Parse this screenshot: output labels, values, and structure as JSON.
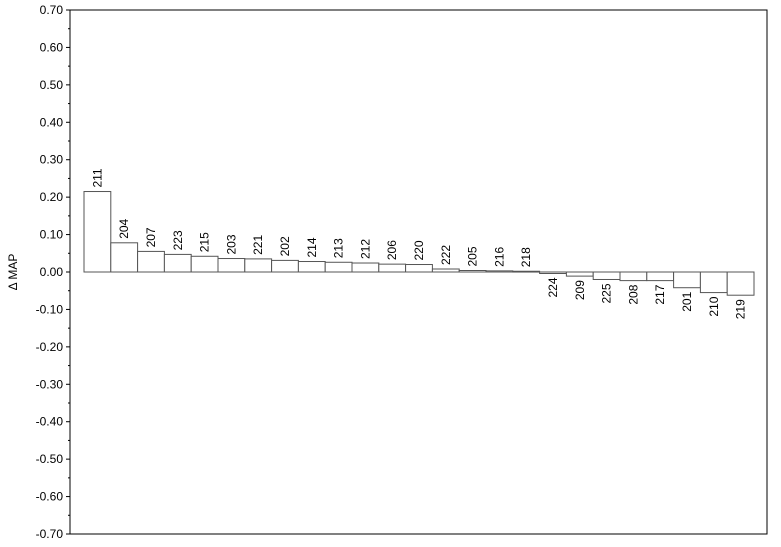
{
  "chart_data": {
    "type": "bar",
    "title": "",
    "xlabel": "",
    "ylabel": "Δ MAP",
    "ylim": [
      -0.7,
      0.7
    ],
    "yticks": [
      "0.70",
      "0.60",
      "0.50",
      "0.40",
      "0.30",
      "0.20",
      "0.10",
      "0.00",
      "-0.10",
      "-0.20",
      "-0.30",
      "-0.40",
      "-0.50",
      "-0.60",
      "-0.70"
    ],
    "grid": false,
    "legend": "none",
    "categories": [
      "211",
      "204",
      "207",
      "223",
      "215",
      "203",
      "221",
      "202",
      "214",
      "213",
      "212",
      "206",
      "220",
      "222",
      "205",
      "216",
      "218",
      "224",
      "209",
      "225",
      "208",
      "217",
      "201",
      "210",
      "219"
    ],
    "values": [
      0.215,
      0.078,
      0.055,
      0.047,
      0.042,
      0.036,
      0.035,
      0.031,
      0.028,
      0.026,
      0.024,
      0.021,
      0.02,
      0.008,
      0.004,
      0.003,
      0.002,
      -0.004,
      -0.011,
      -0.02,
      -0.023,
      -0.023,
      -0.042,
      -0.055,
      -0.062
    ],
    "colors": {
      "bar_fill": "#ffffff",
      "bar_stroke": "#555555",
      "axis": "#000000"
    }
  }
}
